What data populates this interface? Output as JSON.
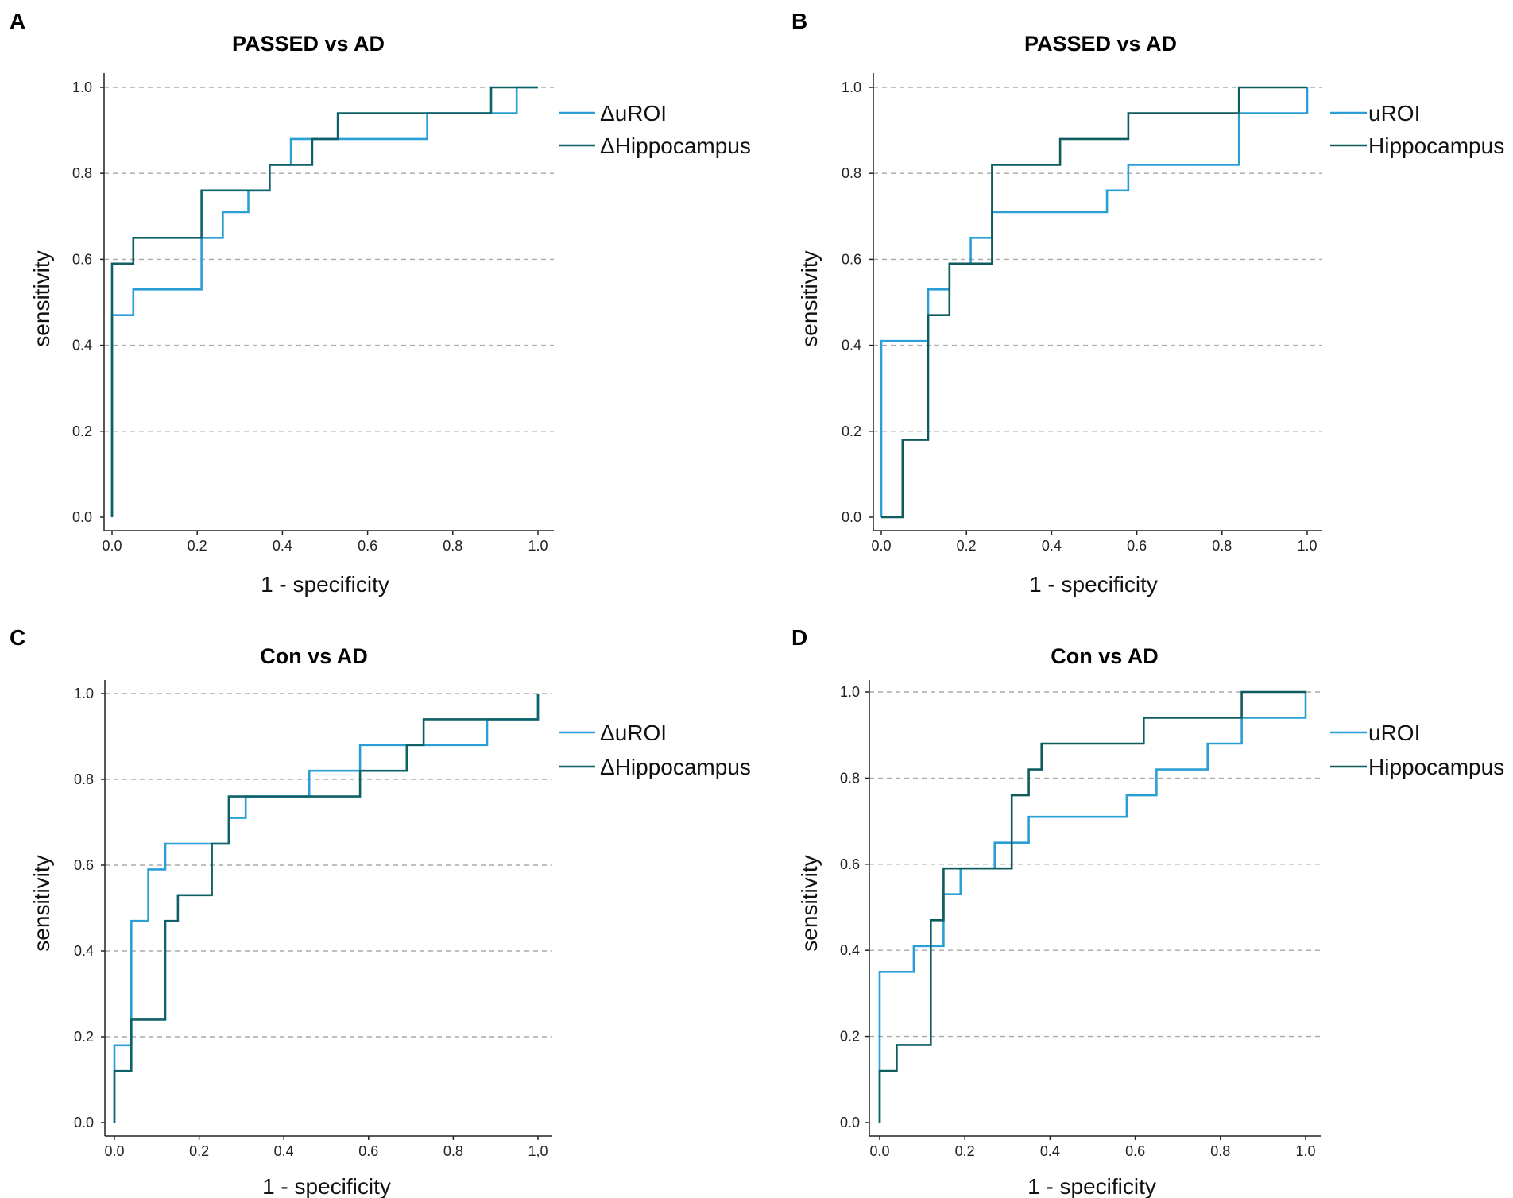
{
  "chart_data": [
    {
      "id": "A",
      "letter": "A",
      "type": "line",
      "title": "PASSED vs AD",
      "xlabel": "1 - specificity",
      "ylabel": "sensitivity",
      "xlim": [
        0,
        1
      ],
      "ylim": [
        0,
        1
      ],
      "xticks": [
        "0.0",
        "0.2",
        "0.4",
        "0.6",
        "0.8",
        "1.0"
      ],
      "yticks": [
        "0.0",
        "0.2",
        "0.4",
        "0.6",
        "0.8",
        "1.0"
      ],
      "grid": "horizontal dashed",
      "legend_position": "right",
      "series": [
        {
          "name": "ΔuROI",
          "color": "#2a9fd6",
          "points": [
            [
              0,
              0
            ],
            [
              0,
              0.47
            ],
            [
              0.05,
              0.47
            ],
            [
              0.05,
              0.53
            ],
            [
              0.21,
              0.53
            ],
            [
              0.21,
              0.65
            ],
            [
              0.26,
              0.65
            ],
            [
              0.26,
              0.71
            ],
            [
              0.32,
              0.71
            ],
            [
              0.32,
              0.76
            ],
            [
              0.37,
              0.76
            ],
            [
              0.37,
              0.82
            ],
            [
              0.42,
              0.82
            ],
            [
              0.42,
              0.88
            ],
            [
              0.74,
              0.88
            ],
            [
              0.74,
              0.94
            ],
            [
              0.95,
              0.94
            ],
            [
              0.95,
              1.0
            ],
            [
              1.0,
              1.0
            ]
          ]
        },
        {
          "name": "ΔHippocampus",
          "color": "#0f6168",
          "points": [
            [
              0,
              0
            ],
            [
              0,
              0.59
            ],
            [
              0.05,
              0.59
            ],
            [
              0.05,
              0.65
            ],
            [
              0.21,
              0.65
            ],
            [
              0.21,
              0.76
            ],
            [
              0.37,
              0.76
            ],
            [
              0.37,
              0.82
            ],
            [
              0.47,
              0.82
            ],
            [
              0.47,
              0.88
            ],
            [
              0.53,
              0.88
            ],
            [
              0.53,
              0.94
            ],
            [
              0.89,
              0.94
            ],
            [
              0.89,
              1.0
            ],
            [
              1.0,
              1.0
            ]
          ]
        }
      ]
    },
    {
      "id": "B",
      "letter": "B",
      "type": "line",
      "title": "PASSED vs AD",
      "xlabel": "1 - specificity",
      "ylabel": "sensitivity",
      "xlim": [
        0,
        1
      ],
      "ylim": [
        0,
        1
      ],
      "xticks": [
        "0.0",
        "0.2",
        "0.4",
        "0.6",
        "0.8",
        "1.0"
      ],
      "yticks": [
        "0.0",
        "0.2",
        "0.4",
        "0.6",
        "0.8",
        "1.0"
      ],
      "grid": "horizontal dashed",
      "legend_position": "right",
      "series": [
        {
          "name": "uROI",
          "color": "#2a9fd6",
          "points": [
            [
              0,
              0
            ],
            [
              0,
              0.41
            ],
            [
              0.11,
              0.41
            ],
            [
              0.11,
              0.53
            ],
            [
              0.16,
              0.53
            ],
            [
              0.16,
              0.59
            ],
            [
              0.21,
              0.59
            ],
            [
              0.21,
              0.65
            ],
            [
              0.26,
              0.65
            ],
            [
              0.26,
              0.71
            ],
            [
              0.53,
              0.71
            ],
            [
              0.53,
              0.76
            ],
            [
              0.58,
              0.76
            ],
            [
              0.58,
              0.82
            ],
            [
              0.84,
              0.82
            ],
            [
              0.84,
              0.94
            ],
            [
              1.0,
              0.94
            ],
            [
              1.0,
              1.0
            ]
          ]
        },
        {
          "name": "Hippocampus",
          "color": "#0f5c5e",
          "points": [
            [
              0,
              0
            ],
            [
              0.05,
              0
            ],
            [
              0.05,
              0.18
            ],
            [
              0.11,
              0.18
            ],
            [
              0.11,
              0.47
            ],
            [
              0.16,
              0.47
            ],
            [
              0.16,
              0.59
            ],
            [
              0.26,
              0.59
            ],
            [
              0.26,
              0.82
            ],
            [
              0.42,
              0.82
            ],
            [
              0.42,
              0.88
            ],
            [
              0.58,
              0.88
            ],
            [
              0.58,
              0.94
            ],
            [
              0.84,
              0.94
            ],
            [
              0.84,
              1.0
            ],
            [
              1.0,
              1.0
            ]
          ]
        }
      ]
    },
    {
      "id": "C",
      "letter": "C",
      "type": "line",
      "title": "Con vs AD",
      "xlabel": "1 - specificity",
      "ylabel": "sensitivity",
      "xlim": [
        0,
        1
      ],
      "ylim": [
        0,
        1
      ],
      "xticks": [
        "0.0",
        "0.2",
        "0.4",
        "0.6",
        "0.8",
        "1,0"
      ],
      "yticks": [
        "0.0",
        "0.2",
        "0.4",
        "0.6",
        "0.8",
        "1.0"
      ],
      "grid": "horizontal dashed",
      "legend_position": "right",
      "series": [
        {
          "name": "ΔuROI",
          "color": "#2a9fd6",
          "points": [
            [
              0,
              0
            ],
            [
              0,
              0.18
            ],
            [
              0.04,
              0.18
            ],
            [
              0.04,
              0.47
            ],
            [
              0.08,
              0.47
            ],
            [
              0.08,
              0.59
            ],
            [
              0.12,
              0.59
            ],
            [
              0.12,
              0.65
            ],
            [
              0.27,
              0.65
            ],
            [
              0.27,
              0.71
            ],
            [
              0.31,
              0.71
            ],
            [
              0.31,
              0.76
            ],
            [
              0.46,
              0.76
            ],
            [
              0.46,
              0.82
            ],
            [
              0.58,
              0.82
            ],
            [
              0.58,
              0.88
            ],
            [
              0.88,
              0.88
            ],
            [
              0.88,
              0.94
            ],
            [
              1.0,
              0.94
            ],
            [
              1.0,
              1.0
            ]
          ]
        },
        {
          "name": "ΔHippocampus",
          "color": "#0f6168",
          "points": [
            [
              0,
              0
            ],
            [
              0,
              0.12
            ],
            [
              0.04,
              0.12
            ],
            [
              0.04,
              0.24
            ],
            [
              0.12,
              0.24
            ],
            [
              0.12,
              0.47
            ],
            [
              0.15,
              0.47
            ],
            [
              0.15,
              0.53
            ],
            [
              0.23,
              0.53
            ],
            [
              0.23,
              0.65
            ],
            [
              0.27,
              0.65
            ],
            [
              0.27,
              0.76
            ],
            [
              0.58,
              0.76
            ],
            [
              0.58,
              0.82
            ],
            [
              0.69,
              0.82
            ],
            [
              0.69,
              0.88
            ],
            [
              0.73,
              0.88
            ],
            [
              0.73,
              0.94
            ],
            [
              1.0,
              0.94
            ],
            [
              1.0,
              1.0
            ]
          ]
        }
      ]
    },
    {
      "id": "D",
      "letter": "D",
      "type": "line",
      "title": "Con vs AD",
      "xlabel": "1 - specificity",
      "ylabel": "sensitivity",
      "xlim": [
        0,
        1
      ],
      "ylim": [
        0,
        1
      ],
      "xticks": [
        "0.0",
        "0.2",
        "0.4",
        "0.6",
        "0.8",
        "1.0"
      ],
      "yticks": [
        "0.0",
        "0.2",
        "0.4",
        "0.6",
        "0.8",
        "1.0"
      ],
      "grid": "horizontal dashed",
      "legend_position": "right",
      "series": [
        {
          "name": "uROI",
          "color": "#2a9fd6",
          "points": [
            [
              0,
              0
            ],
            [
              0,
              0.35
            ],
            [
              0.08,
              0.35
            ],
            [
              0.08,
              0.41
            ],
            [
              0.15,
              0.41
            ],
            [
              0.15,
              0.53
            ],
            [
              0.19,
              0.53
            ],
            [
              0.19,
              0.59
            ],
            [
              0.27,
              0.59
            ],
            [
              0.27,
              0.65
            ],
            [
              0.35,
              0.65
            ],
            [
              0.35,
              0.71
            ],
            [
              0.58,
              0.71
            ],
            [
              0.58,
              0.76
            ],
            [
              0.65,
              0.76
            ],
            [
              0.65,
              0.82
            ],
            [
              0.77,
              0.82
            ],
            [
              0.77,
              0.88
            ],
            [
              0.85,
              0.88
            ],
            [
              0.85,
              0.94
            ],
            [
              1.0,
              0.94
            ],
            [
              1.0,
              1.0
            ]
          ]
        },
        {
          "name": "Hippocampus",
          "color": "#0f5c5e",
          "points": [
            [
              0,
              0
            ],
            [
              0,
              0.12
            ],
            [
              0.04,
              0.12
            ],
            [
              0.04,
              0.18
            ],
            [
              0.12,
              0.18
            ],
            [
              0.12,
              0.47
            ],
            [
              0.15,
              0.47
            ],
            [
              0.15,
              0.59
            ],
            [
              0.31,
              0.59
            ],
            [
              0.31,
              0.76
            ],
            [
              0.35,
              0.76
            ],
            [
              0.35,
              0.82
            ],
            [
              0.38,
              0.82
            ],
            [
              0.38,
              0.88
            ],
            [
              0.62,
              0.88
            ],
            [
              0.62,
              0.94
            ],
            [
              0.85,
              0.94
            ],
            [
              0.85,
              1.0
            ],
            [
              1.0,
              1.0
            ]
          ]
        }
      ]
    }
  ]
}
